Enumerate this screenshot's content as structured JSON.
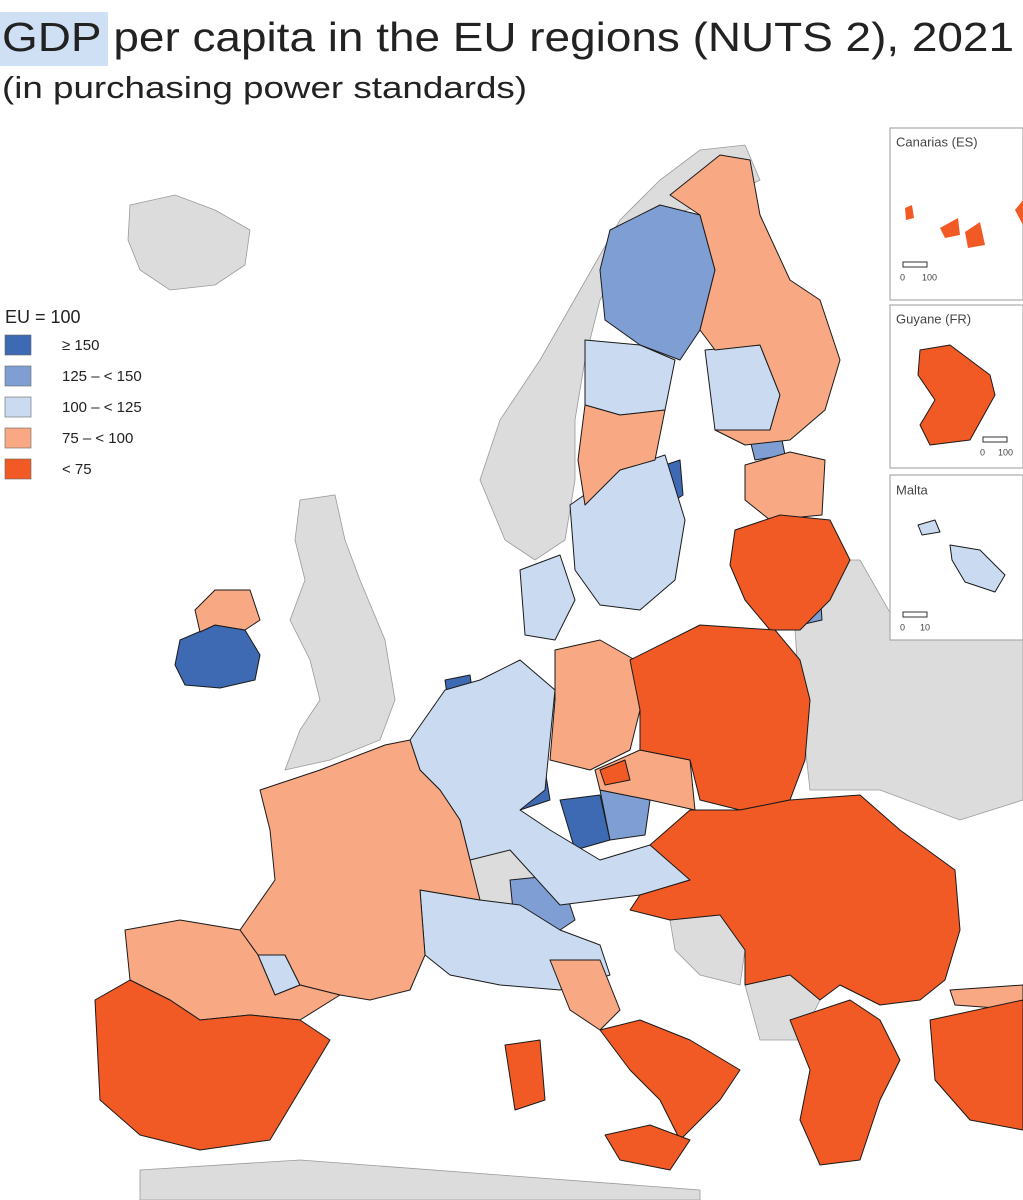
{
  "title": "GDP per capita in the EU regions (NUTS 2), 2021",
  "subtitle": "(in purchasing power standards)",
  "legend": {
    "title": "EU = 100",
    "items": [
      {
        "label": "≥ 150",
        "color": "#3e6ab3"
      },
      {
        "label": "125 – < 150",
        "color": "#7f9fd4"
      },
      {
        "label": "100 – < 125",
        "color": "#cadbf1"
      },
      {
        "label": "75 – < 100",
        "color": "#f8a984"
      },
      {
        "label": "< 75",
        "color": "#f15a24"
      }
    ]
  },
  "insets": [
    {
      "name": "Canarias (ES)",
      "scale": [
        0,
        100
      ]
    },
    {
      "name": "Guyane (FR)",
      "scale": [
        0,
        100
      ]
    },
    {
      "name": "Malta",
      "scale": [
        0,
        10
      ]
    }
  ]
}
